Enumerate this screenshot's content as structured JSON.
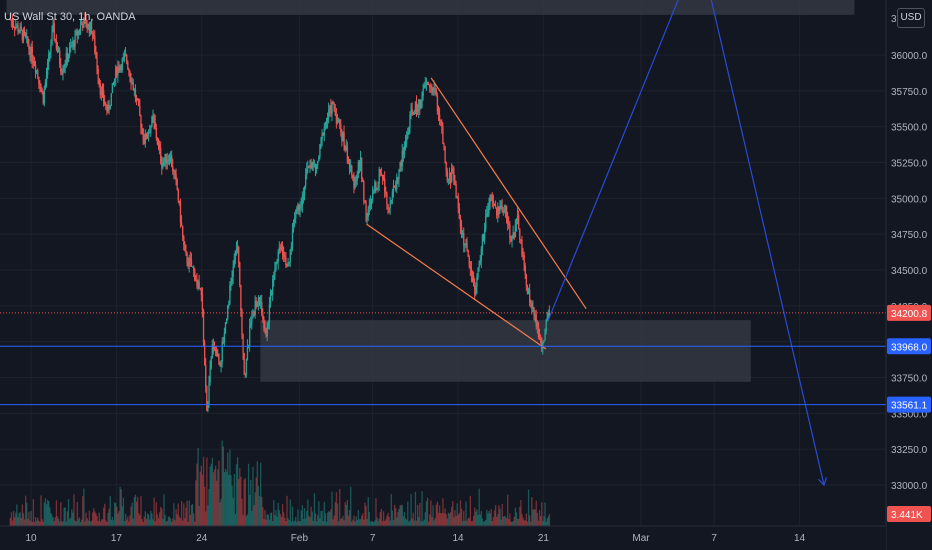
{
  "header": {
    "symbol": "US Wall St 30, 1h, OANDA",
    "currency": "USD",
    "top_price_label": "3"
  },
  "colors": {
    "background": "#131722",
    "up": "#26a69a",
    "down": "#ef5350",
    "wedge": "#f57c4b",
    "forecast": "#2a4bd7",
    "hline": "#2962ff",
    "zone": "#363a45",
    "axis_text": "#b2b5be"
  },
  "chart_data": {
    "type": "candlestick",
    "title": "",
    "y_axis": {
      "unit": "USD",
      "range": [
        32900,
        36280
      ],
      "ticks": [
        33000,
        33250,
        33500,
        33750,
        34000,
        34250,
        34500,
        34750,
        35000,
        35250,
        35500,
        35750,
        36000
      ],
      "tick_labels": [
        "33000.0",
        "33250.0",
        "33500.0",
        "33750.0",
        "34000.0",
        "34250.0",
        "34500.0",
        "34750.0",
        "35000.0",
        "35250.0",
        "35500.0",
        "35750.0",
        "36000.0"
      ]
    },
    "x_axis": {
      "range_days": [
        "Jan 8",
        "Mar 16"
      ],
      "ticks": [
        {
          "day": 10,
          "label": "10"
        },
        {
          "day": 17,
          "label": "17"
        },
        {
          "day": 24,
          "label": "24"
        },
        {
          "day": 32,
          "label": "Feb"
        },
        {
          "day": 38,
          "label": "7"
        },
        {
          "day": 45,
          "label": "14"
        },
        {
          "day": 52,
          "label": "21"
        },
        {
          "day": 60,
          "label": "Mar"
        },
        {
          "day": 66,
          "label": "7"
        },
        {
          "day": 73,
          "label": "14"
        }
      ]
    },
    "price_path": [
      {
        "day": 8.3,
        "price": 36250
      },
      {
        "day": 9.5,
        "price": 36120
      },
      {
        "day": 10.3,
        "price": 35950
      },
      {
        "day": 11.0,
        "price": 35700
      },
      {
        "day": 11.8,
        "price": 36180
      },
      {
        "day": 12.5,
        "price": 35900
      },
      {
        "day": 13.3,
        "price": 36050
      },
      {
        "day": 14.2,
        "price": 36230
      },
      {
        "day": 15.0,
        "price": 36180
      },
      {
        "day": 15.7,
        "price": 35750
      },
      {
        "day": 16.3,
        "price": 35600
      },
      {
        "day": 17.0,
        "price": 35900
      },
      {
        "day": 17.8,
        "price": 35980
      },
      {
        "day": 18.6,
        "price": 35700
      },
      {
        "day": 19.3,
        "price": 35400
      },
      {
        "day": 20.0,
        "price": 35550
      },
      {
        "day": 20.7,
        "price": 35250
      },
      {
        "day": 21.4,
        "price": 35300
      },
      {
        "day": 22.0,
        "price": 35050
      },
      {
        "day": 22.6,
        "price": 34600
      },
      {
        "day": 23.3,
        "price": 34500
      },
      {
        "day": 24.0,
        "price": 34300
      },
      {
        "day": 24.4,
        "price": 33500
      },
      {
        "day": 24.9,
        "price": 34000
      },
      {
        "day": 25.5,
        "price": 33850
      },
      {
        "day": 26.2,
        "price": 34300
      },
      {
        "day": 26.9,
        "price": 34700
      },
      {
        "day": 27.5,
        "price": 33750
      },
      {
        "day": 28.1,
        "price": 34200
      },
      {
        "day": 28.7,
        "price": 34300
      },
      {
        "day": 29.3,
        "price": 34050
      },
      {
        "day": 29.9,
        "price": 34500
      },
      {
        "day": 30.5,
        "price": 34700
      },
      {
        "day": 31.1,
        "price": 34500
      },
      {
        "day": 31.6,
        "price": 34900
      },
      {
        "day": 32.2,
        "price": 35000
      },
      {
        "day": 32.8,
        "price": 35250
      },
      {
        "day": 33.4,
        "price": 35200
      },
      {
        "day": 34.0,
        "price": 35500
      },
      {
        "day": 34.7,
        "price": 35650
      },
      {
        "day": 35.3,
        "price": 35500
      },
      {
        "day": 35.8,
        "price": 35350
      },
      {
        "day": 36.4,
        "price": 35100
      },
      {
        "day": 37.0,
        "price": 35250
      },
      {
        "day": 37.5,
        "price": 34850
      },
      {
        "day": 38.1,
        "price": 35050
      },
      {
        "day": 38.7,
        "price": 35200
      },
      {
        "day": 39.3,
        "price": 34950
      },
      {
        "day": 39.9,
        "price": 35100
      },
      {
        "day": 40.6,
        "price": 35350
      },
      {
        "day": 41.2,
        "price": 35600
      },
      {
        "day": 41.8,
        "price": 35650
      },
      {
        "day": 42.4,
        "price": 35800
      },
      {
        "day": 43.1,
        "price": 35750
      },
      {
        "day": 43.7,
        "price": 35450
      },
      {
        "day": 44.1,
        "price": 35100
      },
      {
        "day": 44.6,
        "price": 35200
      },
      {
        "day": 45.2,
        "price": 34800
      },
      {
        "day": 45.8,
        "price": 34600
      },
      {
        "day": 46.4,
        "price": 34350
      },
      {
        "day": 47.0,
        "price": 34700
      },
      {
        "day": 47.6,
        "price": 35000
      },
      {
        "day": 48.2,
        "price": 34900
      },
      {
        "day": 48.8,
        "price": 34950
      },
      {
        "day": 49.4,
        "price": 34700
      },
      {
        "day": 49.9,
        "price": 34850
      },
      {
        "day": 50.5,
        "price": 34450
      },
      {
        "day": 51.0,
        "price": 34250
      },
      {
        "day": 51.5,
        "price": 34100
      },
      {
        "day": 51.9,
        "price": 33950
      },
      {
        "day": 52.3,
        "price": 34150
      },
      {
        "day": 52.5,
        "price": 34200
      }
    ],
    "volume_profile": {
      "unit": "volume",
      "last_label": "3.441K"
    },
    "horizontal_lines": [
      {
        "price": 33968.0,
        "label": "33968.0",
        "style": "solid"
      },
      {
        "price": 33561.1,
        "label": "33561.1",
        "style": "solid"
      }
    ],
    "current_price": {
      "price": 34200.8,
      "label": "34200.8",
      "style": "dotted"
    },
    "zones": [
      {
        "name": "top-zone",
        "day_from": 8,
        "day_to": 77.5,
        "price_from": 36280,
        "price_to": 36500
      },
      {
        "name": "demand-zone",
        "day_from": 28.8,
        "day_to": 69.0,
        "price_from": 33720,
        "price_to": 34150
      }
    ],
    "wedge": {
      "upper": [
        {
          "day": 42.8,
          "price": 35840
        },
        {
          "day": 55.5,
          "price": 34230
        }
      ],
      "lower": [
        {
          "day": 37.5,
          "price": 34820
        },
        {
          "day": 52.2,
          "price": 33950
        }
      ]
    },
    "forecast_path": [
      {
        "day": 52.4,
        "price": 34150
      },
      {
        "day": 63.5,
        "price": 36480
      },
      {
        "day": 65.5,
        "price": 36480
      },
      {
        "day": 75.0,
        "price": 33000
      }
    ]
  }
}
